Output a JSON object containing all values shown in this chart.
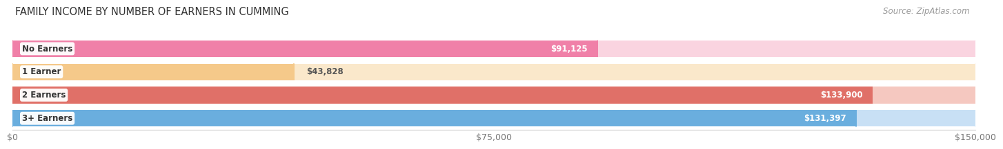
{
  "title": "FAMILY INCOME BY NUMBER OF EARNERS IN CUMMING",
  "source": "Source: ZipAtlas.com",
  "categories": [
    "No Earners",
    "1 Earner",
    "2 Earners",
    "3+ Earners"
  ],
  "values": [
    91125,
    43828,
    133900,
    131397
  ],
  "bar_colors": [
    "#F080A8",
    "#F5C98A",
    "#E07068",
    "#6AAEDE"
  ],
  "bar_bg_colors": [
    "#FAD4E0",
    "#FAE8CB",
    "#F5C8C0",
    "#C8E0F5"
  ],
  "xlim": [
    0,
    150000
  ],
  "xticks": [
    0,
    75000,
    150000
  ],
  "xtick_labels": [
    "$0",
    "$75,000",
    "$150,000"
  ],
  "bar_height": 0.72,
  "value_labels": [
    "$91,125",
    "$43,828",
    "$133,900",
    "$131,397"
  ],
  "title_fontsize": 10.5,
  "source_fontsize": 8.5,
  "tick_fontsize": 9,
  "label_fontsize": 8.5,
  "value_fontsize": 8.5,
  "background_color": "#ffffff",
  "value_inside_threshold": 0.45
}
